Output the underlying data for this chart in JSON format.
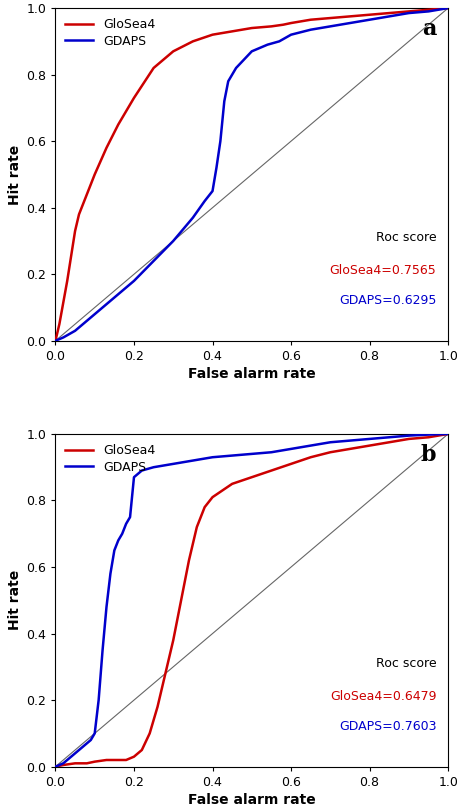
{
  "panel_a": {
    "label": "a",
    "glosea4_fpr": [
      0.0,
      0.01,
      0.03,
      0.05,
      0.06,
      0.08,
      0.1,
      0.13,
      0.16,
      0.2,
      0.25,
      0.3,
      0.35,
      0.4,
      0.45,
      0.5,
      0.55,
      0.58,
      0.6,
      0.65,
      0.7,
      0.75,
      0.8,
      0.85,
      0.9,
      0.95,
      1.0
    ],
    "glosea4_tpr": [
      0.0,
      0.05,
      0.18,
      0.33,
      0.38,
      0.44,
      0.5,
      0.58,
      0.65,
      0.73,
      0.82,
      0.87,
      0.9,
      0.92,
      0.93,
      0.94,
      0.945,
      0.95,
      0.955,
      0.965,
      0.97,
      0.975,
      0.98,
      0.985,
      0.99,
      0.995,
      1.0
    ],
    "gdaps_fpr": [
      0.0,
      0.02,
      0.05,
      0.08,
      0.1,
      0.13,
      0.16,
      0.2,
      0.25,
      0.3,
      0.35,
      0.38,
      0.4,
      0.41,
      0.42,
      0.43,
      0.44,
      0.46,
      0.5,
      0.54,
      0.57,
      0.6,
      0.65,
      0.7,
      0.75,
      0.8,
      0.85,
      0.9,
      0.95,
      1.0
    ],
    "gdaps_tpr": [
      0.0,
      0.01,
      0.03,
      0.06,
      0.08,
      0.11,
      0.14,
      0.18,
      0.24,
      0.3,
      0.37,
      0.42,
      0.45,
      0.52,
      0.6,
      0.72,
      0.78,
      0.82,
      0.87,
      0.89,
      0.9,
      0.92,
      0.935,
      0.945,
      0.955,
      0.965,
      0.975,
      0.985,
      0.99,
      1.0
    ],
    "glosea4_score": "0.7565",
    "gdaps_score": "0.6295",
    "xlabel": "False alarm rate",
    "ylabel": "Hit rate",
    "roc_score_label": "Roc score"
  },
  "panel_b": {
    "label": "b",
    "glosea4_fpr": [
      0.0,
      0.02,
      0.05,
      0.08,
      0.1,
      0.13,
      0.16,
      0.18,
      0.2,
      0.22,
      0.24,
      0.26,
      0.28,
      0.3,
      0.32,
      0.34,
      0.36,
      0.38,
      0.4,
      0.45,
      0.5,
      0.55,
      0.6,
      0.65,
      0.7,
      0.75,
      0.8,
      0.85,
      0.9,
      0.95,
      1.0
    ],
    "glosea4_tpr": [
      0.0,
      0.005,
      0.01,
      0.01,
      0.015,
      0.02,
      0.02,
      0.02,
      0.03,
      0.05,
      0.1,
      0.18,
      0.28,
      0.38,
      0.5,
      0.62,
      0.72,
      0.78,
      0.81,
      0.85,
      0.87,
      0.89,
      0.91,
      0.93,
      0.945,
      0.955,
      0.965,
      0.975,
      0.985,
      0.99,
      1.0
    ],
    "gdaps_fpr": [
      0.0,
      0.01,
      0.02,
      0.03,
      0.05,
      0.07,
      0.09,
      0.1,
      0.11,
      0.12,
      0.13,
      0.14,
      0.15,
      0.16,
      0.17,
      0.18,
      0.19,
      0.2,
      0.22,
      0.25,
      0.3,
      0.35,
      0.4,
      0.45,
      0.5,
      0.55,
      0.6,
      0.65,
      0.7,
      0.75,
      0.8,
      0.85,
      0.9,
      0.95,
      1.0
    ],
    "gdaps_tpr": [
      0.0,
      0.005,
      0.01,
      0.02,
      0.04,
      0.06,
      0.08,
      0.1,
      0.2,
      0.35,
      0.48,
      0.58,
      0.65,
      0.68,
      0.7,
      0.73,
      0.75,
      0.87,
      0.89,
      0.9,
      0.91,
      0.92,
      0.93,
      0.935,
      0.94,
      0.945,
      0.955,
      0.965,
      0.975,
      0.98,
      0.985,
      0.99,
      0.995,
      0.998,
      1.0
    ],
    "glosea4_score": "0.6479",
    "gdaps_score": "0.7603",
    "xlabel": "False alarm rate",
    "ylabel": "Hit rate",
    "roc_score_label": "Roc score"
  },
  "glosea4_color": "#cc0000",
  "gdaps_color": "#0000cc",
  "diagonal_color": "#666666",
  "bg_color": "#ffffff",
  "line_width": 1.8,
  "tick_fontsize": 9,
  "label_fontsize": 10,
  "score_fontsize": 9,
  "legend_fontsize": 9,
  "panel_label_fontsize": 16
}
